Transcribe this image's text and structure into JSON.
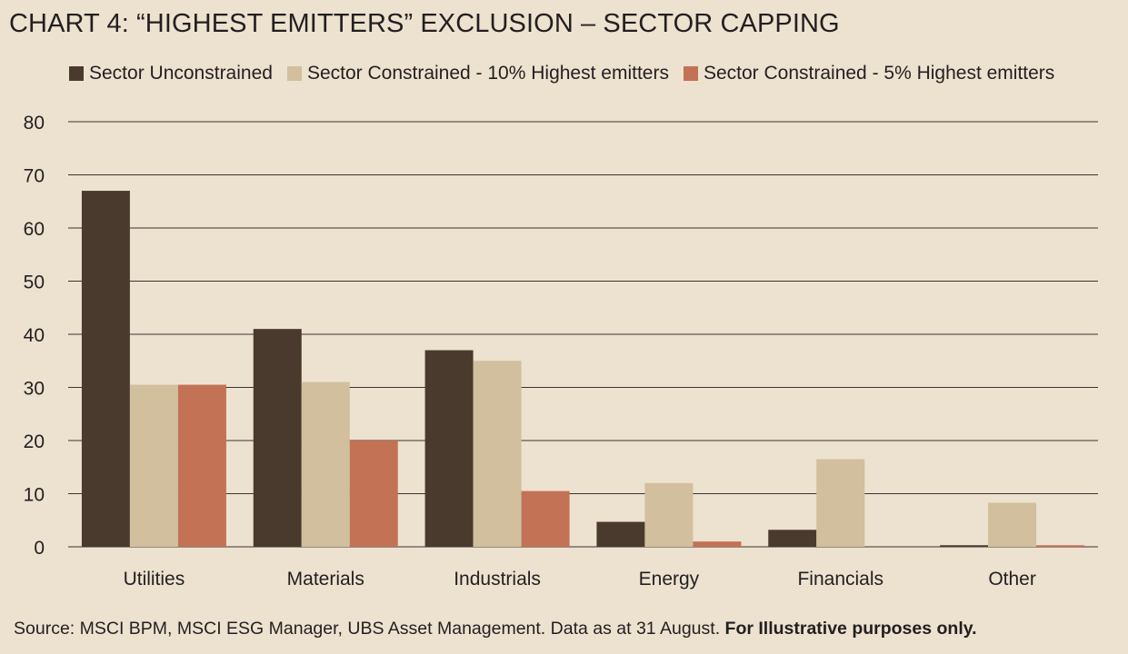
{
  "chart_data": {
    "type": "bar",
    "title": "CHART 4: “HIGHEST EMITTERS” EXCLUSION – SECTOR CAPPING",
    "categories": [
      "Utilities",
      "Materials",
      "Industrials",
      "Energy",
      "Financials",
      "Other"
    ],
    "series": [
      {
        "name": "Sector Unconstrained",
        "color": "#4a3a2e",
        "values": [
          67,
          41,
          37,
          4.7,
          3.2,
          0.3
        ]
      },
      {
        "name": "Sector Constrained - 10% Highest emitters",
        "color": "#d1bf9e",
        "values": [
          30.5,
          31,
          35,
          12,
          16.5,
          8.3
        ]
      },
      {
        "name": "Sector Constrained - 5% Highest emitters",
        "color": "#c37255",
        "values": [
          30.5,
          20,
          10.5,
          1,
          0,
          0.3
        ]
      }
    ],
    "ylim": [
      0,
      80
    ],
    "yticks": [
      0,
      10,
      20,
      30,
      40,
      50,
      60,
      70,
      80
    ],
    "xlabel": "",
    "ylabel": "",
    "legend": "top",
    "grid": true
  },
  "footer": {
    "source": "Source: MSCI BPM, MSCI ESG Manager, UBS Asset Management. Data as at 31 August.",
    "note": "For Illustrative purposes only."
  }
}
